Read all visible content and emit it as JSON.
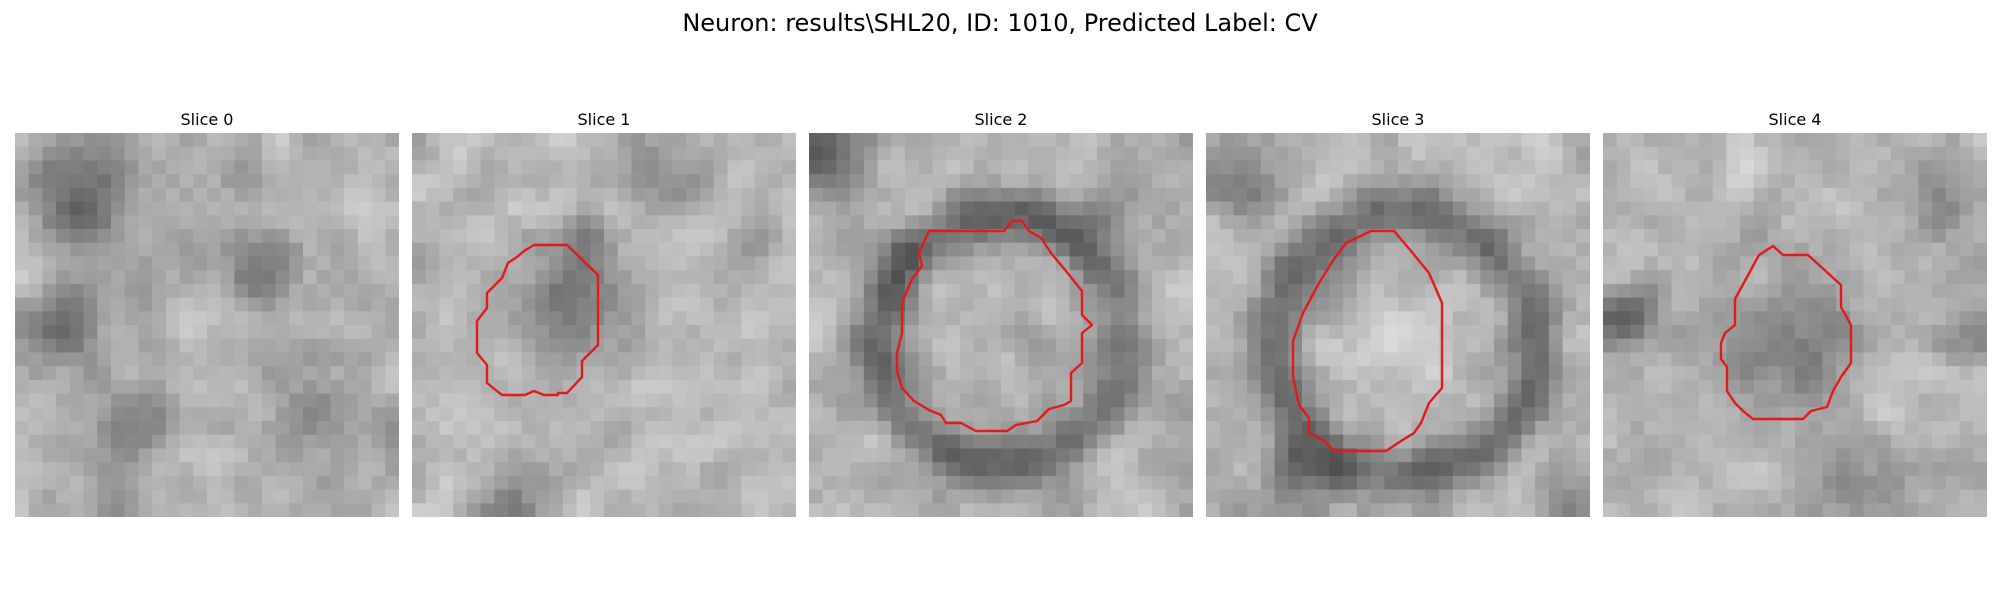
{
  "figure": {
    "title": "Neuron: results\\SHL20, ID: 1010, Predicted Label: CV"
  },
  "panels": [
    {
      "title": "Slice 0",
      "has_contour": false
    },
    {
      "title": "Slice 1",
      "has_contour": true
    },
    {
      "title": "Slice 2",
      "has_contour": true
    },
    {
      "title": "Slice 3",
      "has_contour": true
    },
    {
      "title": "Slice 4",
      "has_contour": true
    }
  ],
  "colors": {
    "contour": "#e31a1c",
    "background": "#ffffff"
  }
}
